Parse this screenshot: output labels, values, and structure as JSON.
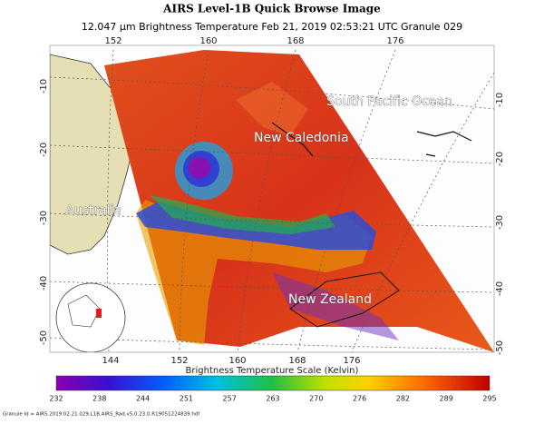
{
  "header": {
    "title": "AIRS Level-1B Quick Browse Image",
    "subtitle": "12.047 μm Brightness Temperature   Feb 21, 2019 02:53:21 UTC   Granule 029"
  },
  "map": {
    "lon_top": [
      "152",
      "160",
      "168",
      "176"
    ],
    "lon_bottom": [
      "144",
      "152",
      "160",
      "168",
      "176"
    ],
    "lat_left": [
      "-10",
      "-20",
      "-30",
      "-40",
      "-50"
    ],
    "lat_right": [
      "-10",
      "-20",
      "-30",
      "-40",
      "-50"
    ],
    "labels": [
      "South Pacific Ocean",
      "New Caledonia",
      "Australia",
      "New Zealand"
    ]
  },
  "colorbar": {
    "title": "Brightness Temperature Scale (Kelvin)",
    "ticks": [
      "232",
      "238",
      "244",
      "251",
      "257",
      "263",
      "270",
      "276",
      "282",
      "289",
      "295"
    ]
  },
  "footer": {
    "granule_id": "Granule Id = AIRS.2019.02.21.029.L1B.AIRS_Rad.v5.0.23.0.R19051224839.hdf"
  }
}
